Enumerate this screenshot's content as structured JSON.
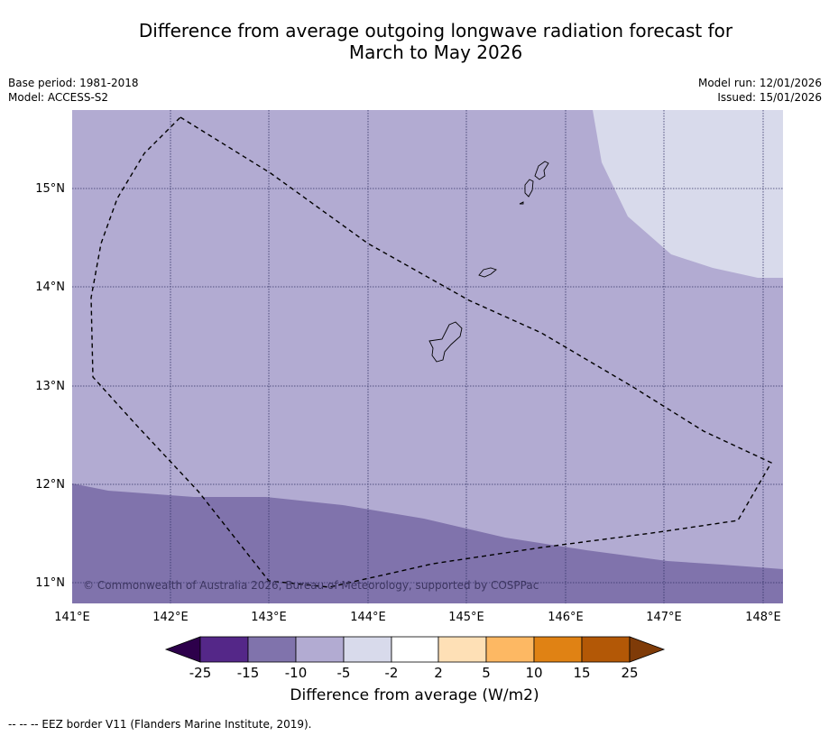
{
  "title": {
    "line1": "Difference from average outgoing longwave radiation forecast for",
    "line2": "March to May 2026"
  },
  "meta": {
    "base_period": "Base period: 1981-2018",
    "model": "Model: ACCESS-S2",
    "model_run": "Model run: 12/01/2026",
    "issued": "Issued: 15/01/2026"
  },
  "map": {
    "lon_labels": [
      "141°E",
      "142°E",
      "143°E",
      "144°E",
      "145°E",
      "146°E",
      "147°E",
      "148°E"
    ],
    "lat_labels": [
      "15°N",
      "14°N",
      "13°N",
      "12°N",
      "11°N"
    ],
    "copyright": "© Commonwealth of Australia 2026, Bureau of Meteorology, supported by COSPPac",
    "zone_colors": {
      "minus_15_to_minus_10": "#8073ac",
      "minus_10_to_minus_5": "#b2abd2",
      "minus_5_to_minus_2": "#d8daeb"
    }
  },
  "colorbar": {
    "label": "Difference from average (W/m2)",
    "ticks": [
      "-25",
      "-15",
      "-10",
      "-5",
      "-2",
      "2",
      "5",
      "10",
      "15",
      "25"
    ],
    "colors": [
      "#2d004b",
      "#542788",
      "#8073ac",
      "#b2abd2",
      "#d8daeb",
      "#ffffff",
      "#fee0b6",
      "#fdb863",
      "#e08214",
      "#b35806",
      "#7f3b08"
    ]
  },
  "footnote": "--  --  -- EEZ border V11 (Flanders Marine Institute, 2019)."
}
